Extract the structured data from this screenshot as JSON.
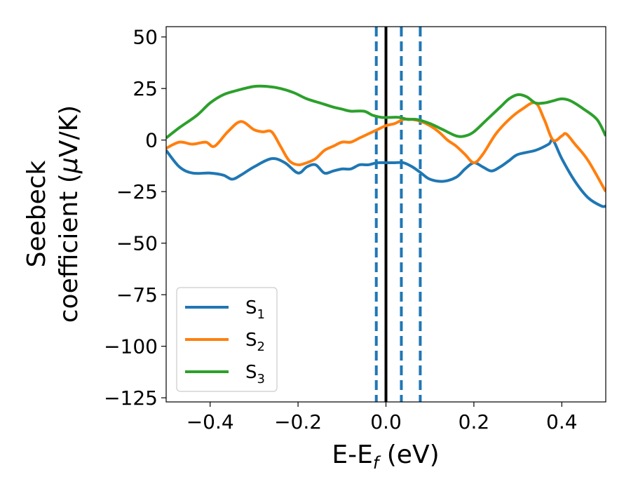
{
  "chart_data": {
    "type": "line",
    "xlabel": {
      "main": "E-E",
      "sub": "f",
      "unit": " (eV)"
    },
    "ylabel": {
      "line1": "Seebeck",
      "line2_pre": "coefficient  (",
      "line2_mu": "μ",
      "line2_post": "V/K)"
    },
    "xlim": [
      -0.5,
      0.5
    ],
    "ylim": [
      -127,
      55
    ],
    "xticks": [
      -0.4,
      -0.2,
      0.0,
      0.2,
      0.4
    ],
    "xtick_labels": [
      "−0.4",
      "−0.2",
      "0.0",
      "0.2",
      "0.4"
    ],
    "yticks": [
      50,
      25,
      0,
      -25,
      -50,
      -75,
      -100,
      -125
    ],
    "ytick_labels": [
      "50",
      "25",
      "0",
      "−25",
      "−50",
      "−75",
      "−100",
      "−125"
    ],
    "legend_position": "lower-left",
    "vlines": [
      {
        "x": 0.0,
        "style": "solid",
        "color": "#000000"
      },
      {
        "x": -0.022,
        "style": "dashed",
        "color": "#1f77b4"
      },
      {
        "x": 0.035,
        "style": "dashed",
        "color": "#1f77b4"
      },
      {
        "x": 0.078,
        "style": "dashed",
        "color": "#1f77b4"
      }
    ],
    "series": [
      {
        "name": "S",
        "sub": "1",
        "color": "#1f77b4",
        "x": [
          -0.5,
          -0.47,
          -0.44,
          -0.4,
          -0.37,
          -0.35,
          -0.33,
          -0.3,
          -0.26,
          -0.23,
          -0.2,
          -0.18,
          -0.16,
          -0.14,
          -0.12,
          -0.1,
          -0.08,
          -0.06,
          -0.04,
          -0.02,
          0.0,
          0.02,
          0.04,
          0.06,
          0.08,
          0.1,
          0.13,
          0.16,
          0.18,
          0.2,
          0.22,
          0.24,
          0.26,
          0.28,
          0.3,
          0.34,
          0.37,
          0.38,
          0.4,
          0.43,
          0.46,
          0.49,
          0.5
        ],
        "y": [
          -5,
          -13,
          -16,
          -16,
          -17,
          -19,
          -17,
          -13,
          -9,
          -11,
          -16,
          -13,
          -12,
          -16,
          -15,
          -14,
          -14,
          -12,
          -12,
          -11,
          -11,
          -11,
          -11,
          -13,
          -16,
          -19,
          -20,
          -18,
          -14,
          -11,
          -13,
          -15,
          -13,
          -10,
          -7,
          -5,
          -2,
          0,
          -9,
          -20,
          -28,
          -32,
          -32
        ]
      },
      {
        "name": "S",
        "sub": "2",
        "color": "#ff7f0e",
        "x": [
          -0.5,
          -0.47,
          -0.44,
          -0.41,
          -0.39,
          -0.36,
          -0.33,
          -0.3,
          -0.28,
          -0.26,
          -0.24,
          -0.22,
          -0.2,
          -0.18,
          -0.16,
          -0.14,
          -0.12,
          -0.1,
          -0.08,
          -0.06,
          -0.04,
          -0.02,
          0.0,
          0.02,
          0.04,
          0.06,
          0.08,
          0.1,
          0.12,
          0.14,
          0.16,
          0.18,
          0.2,
          0.22,
          0.25,
          0.28,
          0.31,
          0.34,
          0.36,
          0.38,
          0.4,
          0.41,
          0.43,
          0.46,
          0.5
        ],
        "y": [
          -4,
          -1,
          -2,
          -1,
          -3,
          4,
          9,
          5,
          4,
          4,
          -3,
          -10,
          -12,
          -11,
          -9,
          -5,
          -3,
          -1,
          -1,
          1,
          3,
          5,
          7,
          8,
          10,
          10,
          9,
          7,
          4,
          0,
          -3,
          -7,
          -11,
          -7,
          3,
          10,
          15,
          18,
          10,
          0,
          2,
          3,
          -2,
          -10,
          -25
        ]
      },
      {
        "name": "S",
        "sub": "3",
        "color": "#2ca02c",
        "x": [
          -0.5,
          -0.47,
          -0.43,
          -0.4,
          -0.37,
          -0.34,
          -0.3,
          -0.27,
          -0.24,
          -0.21,
          -0.18,
          -0.15,
          -0.12,
          -0.1,
          -0.08,
          -0.05,
          -0.03,
          -0.01,
          0.01,
          0.03,
          0.05,
          0.07,
          0.1,
          0.13,
          0.16,
          0.18,
          0.2,
          0.23,
          0.26,
          0.28,
          0.3,
          0.32,
          0.34,
          0.36,
          0.38,
          0.4,
          0.42,
          0.45,
          0.48,
          0.5
        ],
        "y": [
          1,
          6,
          12,
          18,
          22,
          24,
          26,
          26,
          25,
          23,
          20,
          18,
          16,
          15,
          14,
          14,
          12,
          11,
          11,
          11,
          10,
          10,
          8,
          5,
          2,
          2,
          4,
          10,
          16,
          20,
          22,
          21,
          18,
          18,
          19,
          20,
          19,
          15,
          10,
          2
        ]
      }
    ]
  }
}
